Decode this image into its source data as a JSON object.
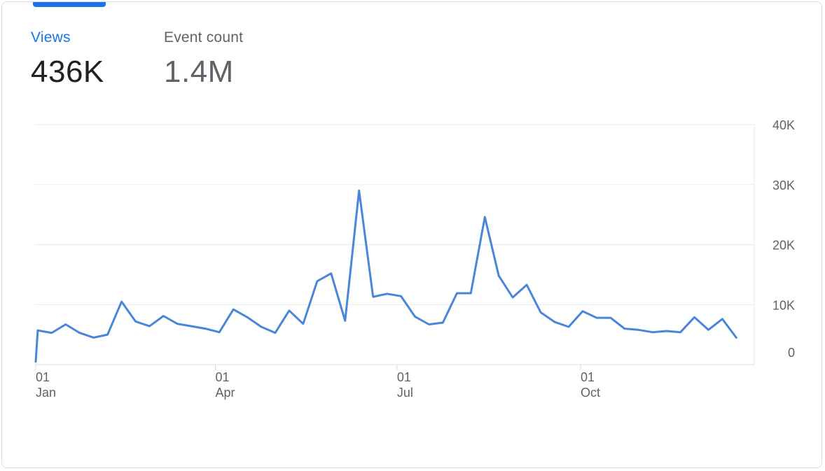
{
  "metrics": [
    {
      "label": "Views",
      "value": "436K",
      "selected": true
    },
    {
      "label": "Event count",
      "value": "1.4M",
      "selected": false
    }
  ],
  "colors": {
    "accent": "#1a73e8",
    "line": "#4a86d8",
    "grid": "#e8eaed",
    "text_muted": "#5f6368",
    "text_dark": "#202124"
  },
  "chart_data": {
    "type": "line",
    "title": "",
    "xlabel": "",
    "ylabel": "",
    "ylim": [
      0,
      40000
    ],
    "yticks": [
      0,
      10000,
      20000,
      30000,
      40000
    ],
    "ytick_labels": [
      "0",
      "10K",
      "20K",
      "30K",
      "40K"
    ],
    "grid": true,
    "xticks": [
      {
        "day": "01",
        "month": "Jan",
        "date": "Jan 01"
      },
      {
        "day": "01",
        "month": "Apr",
        "date": "Apr 01"
      },
      {
        "day": "01",
        "month": "Jul",
        "date": "Jul 01"
      },
      {
        "day": "01",
        "month": "Oct",
        "date": "Oct 01"
      }
    ],
    "series": [
      {
        "x": [
          "Jan 01",
          "Jan 02",
          "Jan 09",
          "Jan 16",
          "Jan 23",
          "Jan 30",
          "Feb 06",
          "Feb 13",
          "Feb 20",
          "Feb 27",
          "Mar 06",
          "Mar 13",
          "Mar 20",
          "Mar 27",
          "Apr 03",
          "Apr 10",
          "Apr 17",
          "Apr 24",
          "May 01",
          "May 08",
          "May 15",
          "May 22",
          "May 29",
          "Jun 05",
          "Jun 12",
          "Jun 19",
          "Jun 26",
          "Jul 03",
          "Jul 10",
          "Jul 17",
          "Jul 24",
          "Jul 31",
          "Aug 07",
          "Aug 14",
          "Aug 21",
          "Aug 28",
          "Sep 04",
          "Sep 11",
          "Sep 18",
          "Sep 25",
          "Oct 02",
          "Oct 09",
          "Oct 16",
          "Oct 23",
          "Oct 30",
          "Nov 06",
          "Nov 13",
          "Nov 20",
          "Nov 27",
          "Dec 04",
          "Dec 11",
          "Dec 18"
        ],
        "values": [
          500,
          5700,
          5300,
          6700,
          5300,
          4500,
          5000,
          10500,
          7200,
          6400,
          8100,
          6800,
          6400,
          6000,
          5400,
          9200,
          7900,
          6300,
          5300,
          9000,
          6800,
          13900,
          15200,
          7300,
          29000,
          11300,
          11800,
          11400,
          8000,
          6700,
          7000,
          11900,
          11900,
          24600,
          14800,
          11200,
          13300,
          8700,
          7100,
          6300,
          8900,
          7800,
          7800,
          6000,
          5800,
          5400,
          5600,
          5400,
          7900,
          5800,
          7600,
          4500
        ]
      }
    ]
  }
}
